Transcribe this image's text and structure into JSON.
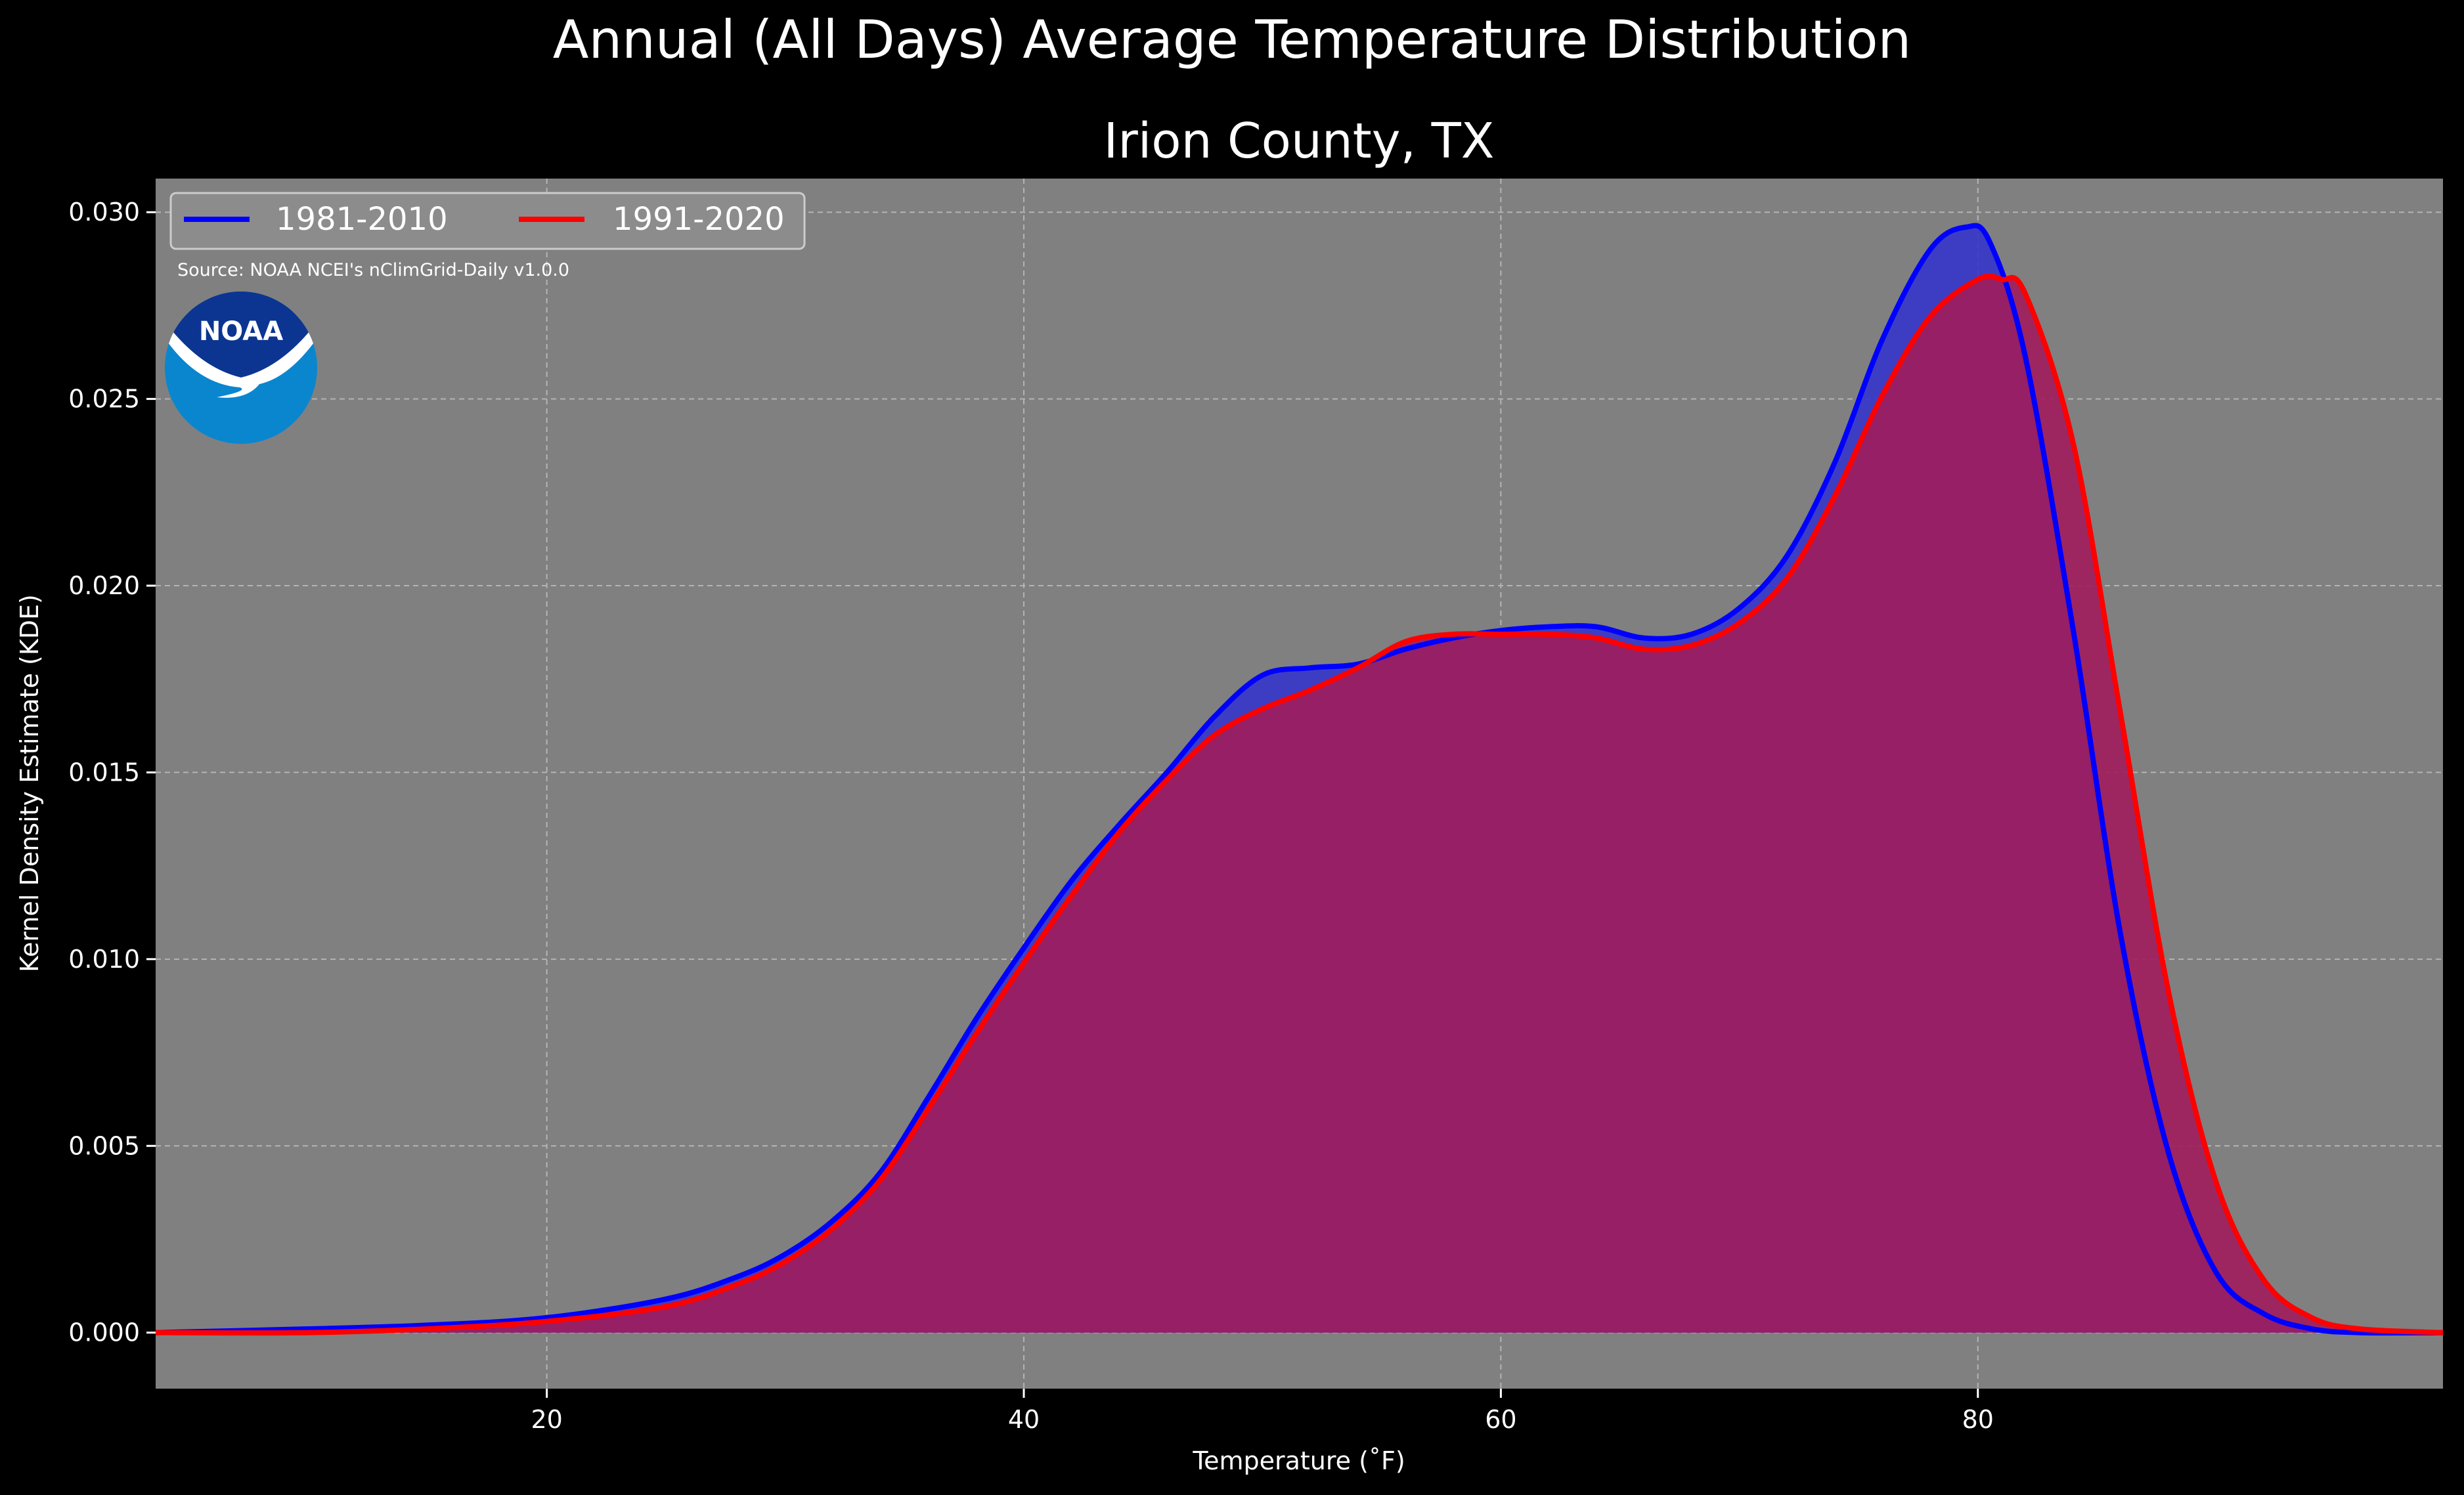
{
  "suptitle": "Annual (All Days) Average Temperature Distribution",
  "source_note": "Source: NOAA NCEI's nClimGrid-Daily v1.0.0",
  "logo_text": "NOAA",
  "colors": {
    "background": "#000000",
    "plot_background": "#808080",
    "series_1981": "#0000ff",
    "series_1991": "#ff0000",
    "fill_1981": "#3333cc",
    "fill_1991": "#a01c5c",
    "logo_dark": "#0b3591",
    "logo_light": "#0a86cf"
  },
  "chart_data": {
    "type": "area",
    "title": "Irion County, TX",
    "xlabel": "Temperature (˚F)",
    "ylabel": "Kernel Density Estimate (KDE)",
    "xlim": [
      3.6,
      99.5
    ],
    "ylim": [
      -0.0015,
      0.0309
    ],
    "xticks": [
      20,
      40,
      60,
      80
    ],
    "yticks": [
      0.0,
      0.005,
      0.01,
      0.015,
      0.02,
      0.025,
      0.03
    ],
    "ytick_labels": [
      "0.000",
      "0.005",
      "0.010",
      "0.015",
      "0.020",
      "0.025",
      "0.030"
    ],
    "grid": true,
    "legend_position": "top-left",
    "series": [
      {
        "name": "1981-2010",
        "x": [
          3.6,
          10,
          15,
          20,
          25,
          28,
          30,
          32,
          34,
          36,
          38,
          40,
          42,
          44,
          46,
          48,
          50,
          52,
          54,
          56,
          58,
          60,
          62,
          64,
          66,
          68,
          70,
          72,
          74,
          76,
          78,
          79.5,
          80.5,
          82,
          84,
          86,
          88,
          90,
          92,
          94,
          96,
          99.5
        ],
        "y": [
          0.0,
          0.0001,
          0.0002,
          0.0004,
          0.0009,
          0.0015,
          0.0021,
          0.003,
          0.0043,
          0.0063,
          0.0084,
          0.0103,
          0.0121,
          0.0136,
          0.015,
          0.0165,
          0.0176,
          0.0178,
          0.0179,
          0.0183,
          0.0186,
          0.0188,
          0.0189,
          0.0189,
          0.0186,
          0.0187,
          0.0194,
          0.0208,
          0.0233,
          0.0266,
          0.029,
          0.0296,
          0.0292,
          0.0261,
          0.0188,
          0.0106,
          0.0048,
          0.0016,
          0.0005,
          0.0001,
          0.0,
          0.0
        ]
      },
      {
        "name": "1991-2020",
        "x": [
          3.6,
          10,
          15,
          20,
          25,
          28,
          30,
          32,
          34,
          36,
          38,
          40,
          42,
          44,
          46,
          48,
          50,
          52,
          54,
          56,
          58,
          60,
          62,
          64,
          66,
          68,
          70,
          72,
          74,
          76,
          78,
          80,
          81,
          82,
          84,
          86,
          88,
          90,
          92,
          94,
          96,
          99.5
        ],
        "y": [
          0.0,
          0.0,
          0.0001,
          0.0003,
          0.0007,
          0.0013,
          0.0019,
          0.0028,
          0.0041,
          0.006,
          0.008,
          0.0099,
          0.0117,
          0.0134,
          0.0148,
          0.016,
          0.0167,
          0.0172,
          0.0178,
          0.0185,
          0.0187,
          0.0187,
          0.0187,
          0.0186,
          0.0183,
          0.0184,
          0.019,
          0.0202,
          0.0224,
          0.0251,
          0.0272,
          0.0282,
          0.0282,
          0.0278,
          0.0238,
          0.0165,
          0.0091,
          0.004,
          0.0014,
          0.0004,
          0.0001,
          0.0
        ]
      }
    ]
  }
}
